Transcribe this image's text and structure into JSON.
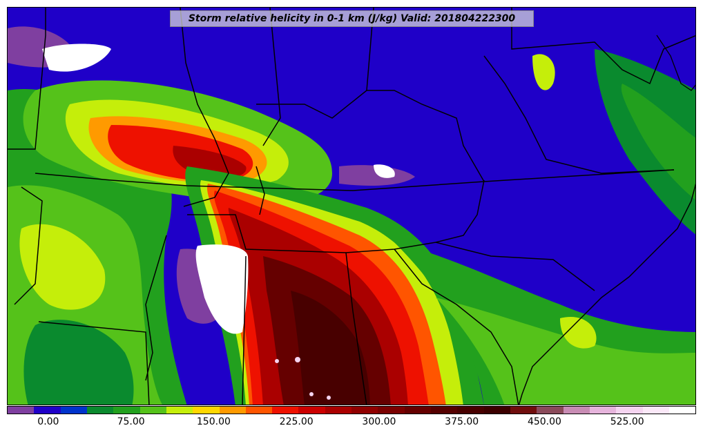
{
  "title": "Storm relative helicity in 0-1 km (J/kg) Valid: 201804222300",
  "colorbar": {
    "colors": [
      "#7f3fa0",
      "#1f00c8",
      "#0033cc",
      "#0a8a2e",
      "#22a01e",
      "#55c21a",
      "#c5ee0a",
      "#ffd700",
      "#ff9a00",
      "#ff5500",
      "#ee1100",
      "#cc0000",
      "#aa0000",
      "#900000",
      "#7a0000",
      "#650000",
      "#550000",
      "#480000",
      "#3c0000",
      "#700d0d",
      "#8a4a5a",
      "#c88cb4",
      "#e6b4dc",
      "#f5d4f0",
      "#fbe8f8",
      "#ffffff"
    ],
    "ticks": [
      {
        "label": "0.00",
        "value": 0
      },
      {
        "label": "75.00",
        "value": 75
      },
      {
        "label": "150.00",
        "value": 150
      },
      {
        "label": "225.00",
        "value": 225
      },
      {
        "label": "300.00",
        "value": 300
      },
      {
        "label": "375.00",
        "value": 375
      },
      {
        "label": "450.00",
        "value": 450
      },
      {
        "label": "525.00",
        "value": 525
      }
    ],
    "min": -37.5,
    "max": 587.5
  },
  "map_layers": {
    "background_color": "#1f00c8",
    "boundary_color": "#000000",
    "coast_color": "#000000"
  }
}
